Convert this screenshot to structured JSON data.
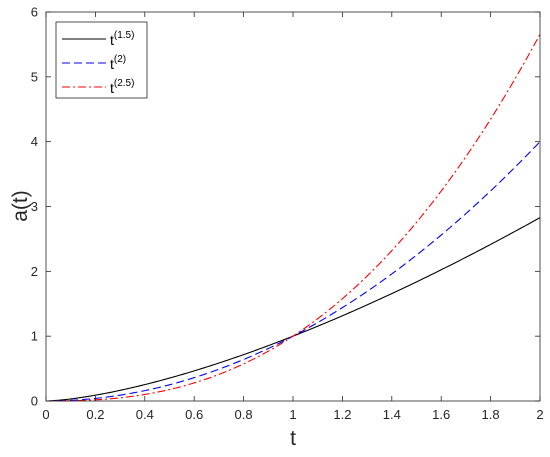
{
  "chart_data": {
    "type": "line",
    "xlabel": "t",
    "ylabel": "a(t)",
    "xlim": [
      0,
      2
    ],
    "ylim": [
      0,
      6
    ],
    "xticks": [
      "0",
      "0.2",
      "0.4",
      "0.6",
      "0.8",
      "1",
      "1.2",
      "1.4",
      "1.6",
      "1.8",
      "2"
    ],
    "yticks": [
      "0",
      "1",
      "2",
      "3",
      "4",
      "5",
      "6"
    ],
    "grid": false,
    "legend_position": "top-left",
    "series": [
      {
        "name_base": "t",
        "name_sup": "(1.5)",
        "color": "#000000",
        "style": "solid",
        "exponent": 1.5,
        "x": [
          0,
          0.2,
          0.4,
          0.6,
          0.8,
          1.0,
          1.2,
          1.4,
          1.6,
          1.8,
          2.0
        ],
        "y": [
          0,
          0.089,
          0.253,
          0.465,
          0.716,
          1.0,
          1.315,
          1.657,
          2.024,
          2.415,
          2.828
        ]
      },
      {
        "name_base": "t",
        "name_sup": "(2)",
        "color": "#0000ff",
        "style": "dashed",
        "exponent": 2,
        "x": [
          0,
          0.2,
          0.4,
          0.6,
          0.8,
          1.0,
          1.2,
          1.4,
          1.6,
          1.8,
          2.0
        ],
        "y": [
          0,
          0.04,
          0.16,
          0.36,
          0.64,
          1.0,
          1.44,
          1.96,
          2.56,
          3.24,
          4.0
        ]
      },
      {
        "name_base": "t",
        "name_sup": "(2.5)",
        "color": "#ff0000",
        "style": "dashdot",
        "exponent": 2.5,
        "x": [
          0,
          0.2,
          0.4,
          0.6,
          0.8,
          1.0,
          1.2,
          1.4,
          1.6,
          1.8,
          2.0
        ],
        "y": [
          0,
          0.018,
          0.101,
          0.279,
          0.572,
          1.0,
          1.577,
          2.319,
          3.238,
          4.347,
          5.657
        ]
      }
    ]
  }
}
